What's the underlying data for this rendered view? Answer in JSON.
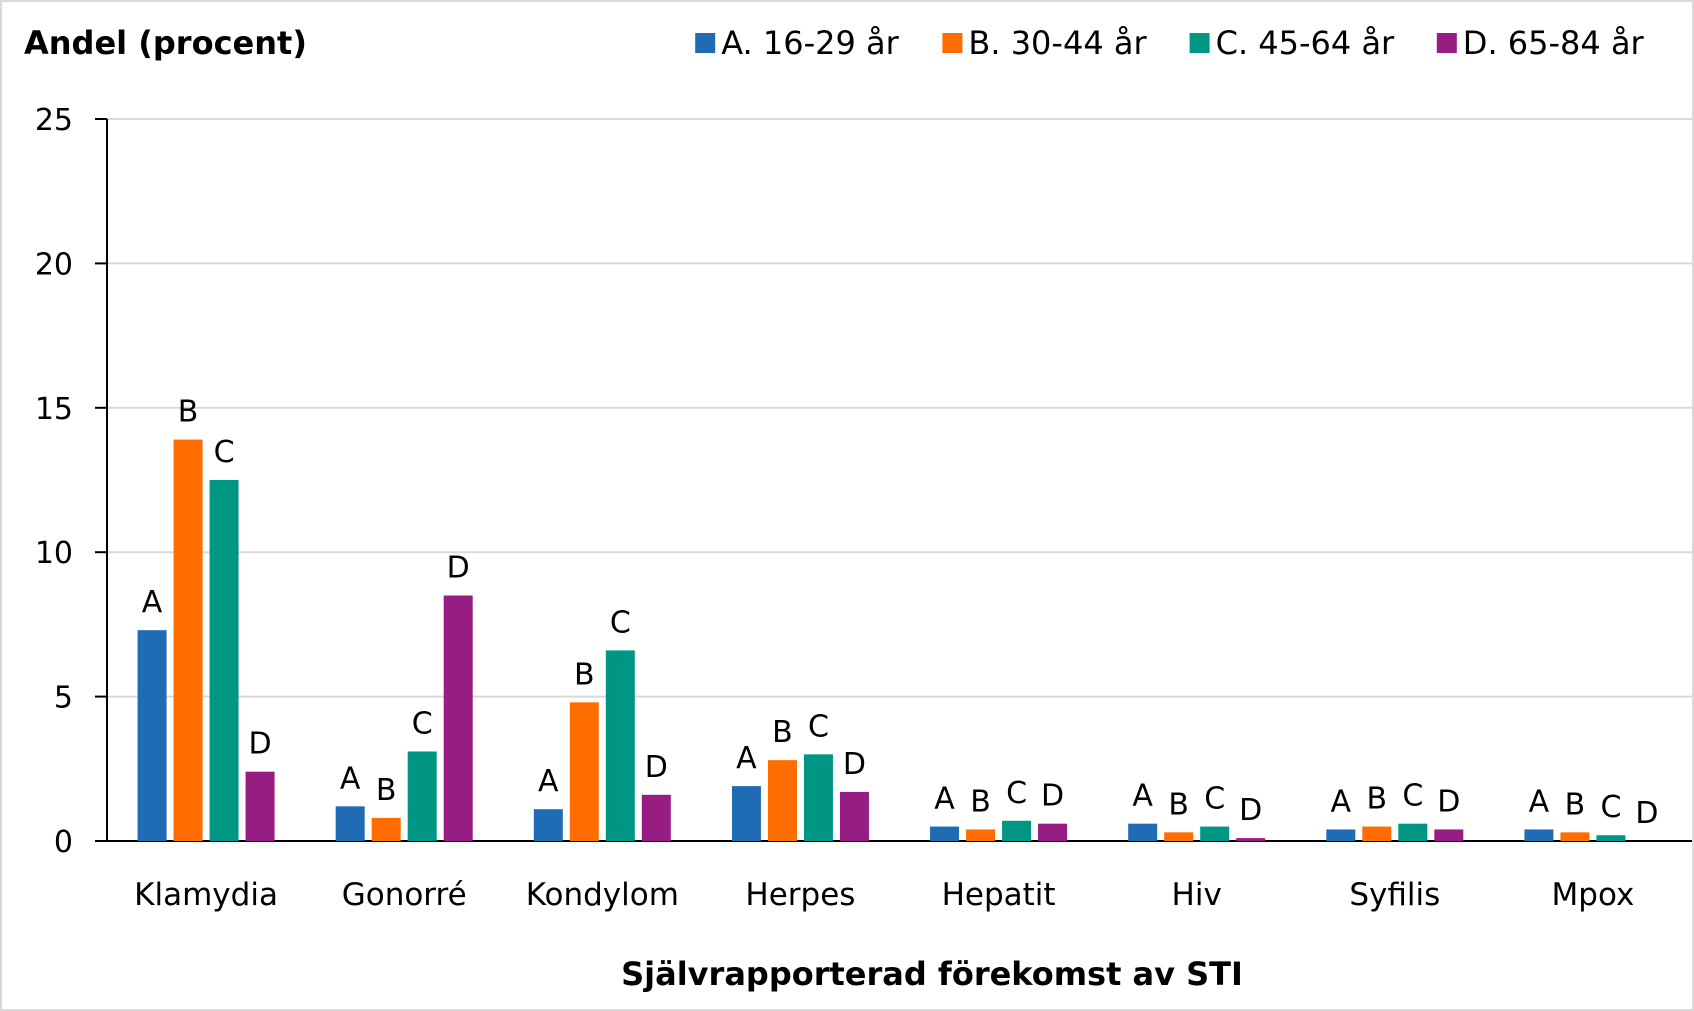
{
  "chart_data": {
    "type": "bar",
    "title": "",
    "ylabel": "Andel (procent)",
    "xlabel": "Självrapporterad förekomst av STI",
    "ylim": [
      0,
      25
    ],
    "yticks": [
      0,
      5,
      10,
      15,
      20,
      25
    ],
    "grid": true,
    "legend_position": "top-right",
    "categories": [
      "Klamydia",
      "Gonorré",
      "Kondylom",
      "Herpes",
      "Hepatit",
      "Hiv",
      "Syfilis",
      "Mpox"
    ],
    "series": [
      {
        "name": "A. 16-29 år",
        "tag": "A",
        "color": "#1f6cb4",
        "values": [
          7.3,
          1.2,
          1.1,
          1.9,
          0.5,
          0.6,
          0.4,
          0.4
        ]
      },
      {
        "name": "B. 30-44 år",
        "tag": "B",
        "color": "#ff6d00",
        "values": [
          13.9,
          0.8,
          4.8,
          2.8,
          0.4,
          0.3,
          0.5,
          0.3
        ]
      },
      {
        "name": "C. 45-64 år",
        "tag": "C",
        "color": "#009684",
        "values": [
          12.5,
          3.1,
          6.6,
          3.0,
          0.7,
          0.5,
          0.6,
          0.2
        ]
      },
      {
        "name": "D. 65-84 år",
        "tag": "D",
        "color": "#971d82",
        "values": [
          2.4,
          8.5,
          1.6,
          1.7,
          0.6,
          0.1,
          0.4,
          0.0
        ]
      }
    ]
  }
}
